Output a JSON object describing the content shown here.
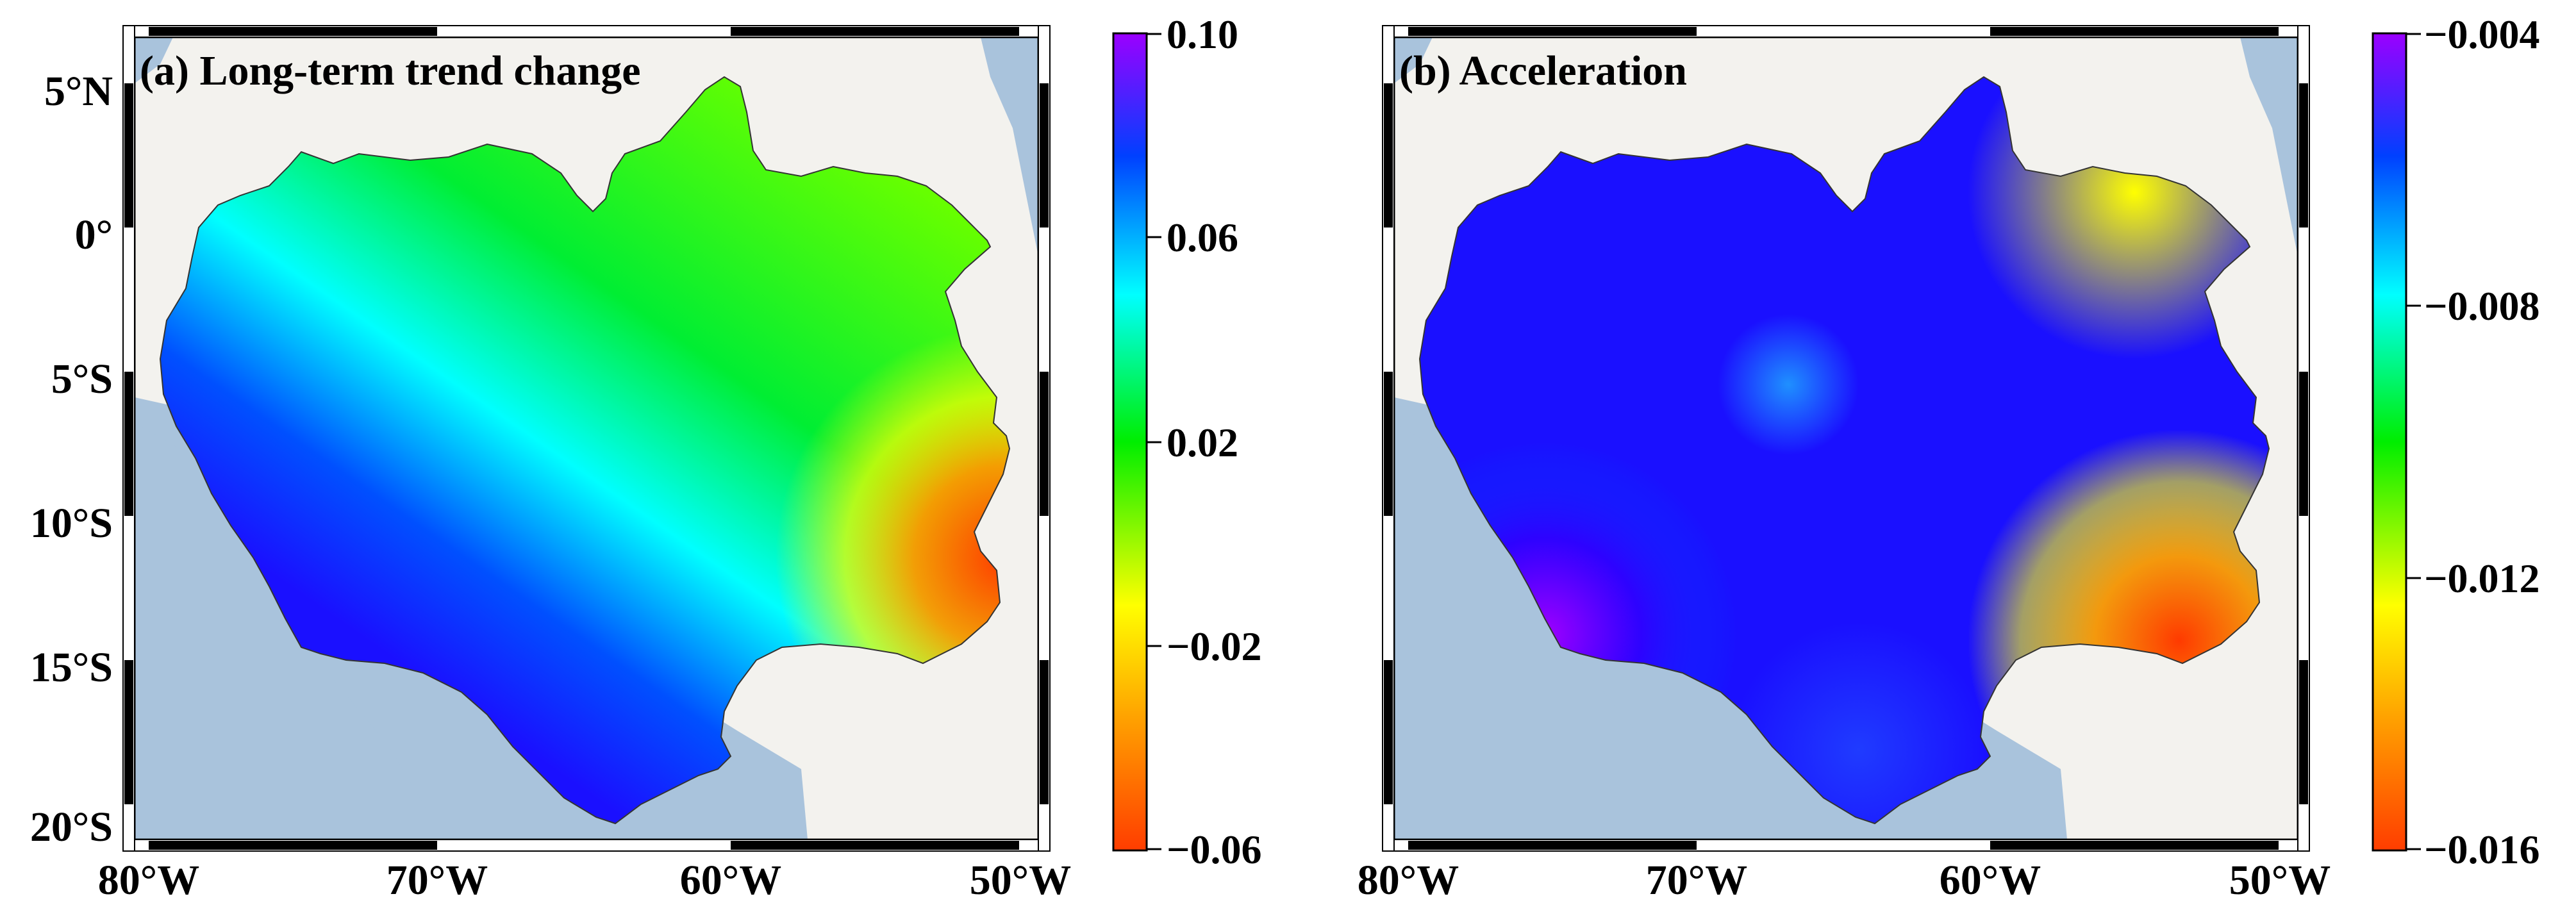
{
  "panels": [
    {
      "title": "(a) Long-term trend change",
      "colorbar": {
        "ticks": [
          "0.10",
          "0.06",
          "0.02",
          "−0.02",
          "−0.06"
        ],
        "min": -0.06,
        "max": 0.1
      },
      "lat_ticks": [
        "5°N",
        "0°",
        "5°S",
        "10°S",
        "15°S",
        "20°S"
      ],
      "lon_ticks": [
        "80°W",
        "70°W",
        "60°W",
        "50°W"
      ]
    },
    {
      "title": "(b) Acceleration",
      "colorbar": {
        "ticks": [
          "−0.004",
          "−0.008",
          "−0.012",
          "−0.016"
        ],
        "min": -0.016,
        "max": -0.004
      },
      "lat_ticks": [
        "5°N",
        "0°",
        "5°S",
        "10°S",
        "15°S",
        "20°S"
      ],
      "lon_ticks": [
        "80°W",
        "70°W",
        "60°W",
        "50°W"
      ]
    }
  ],
  "colors": {
    "ocean": "#a9c3dc",
    "land": "#f3f2ee",
    "colormap": [
      "#ff3d00",
      "#ffa000",
      "#ffff00",
      "#00ee00",
      "#00ffff",
      "#0040ff",
      "#9b00ff"
    ]
  }
}
